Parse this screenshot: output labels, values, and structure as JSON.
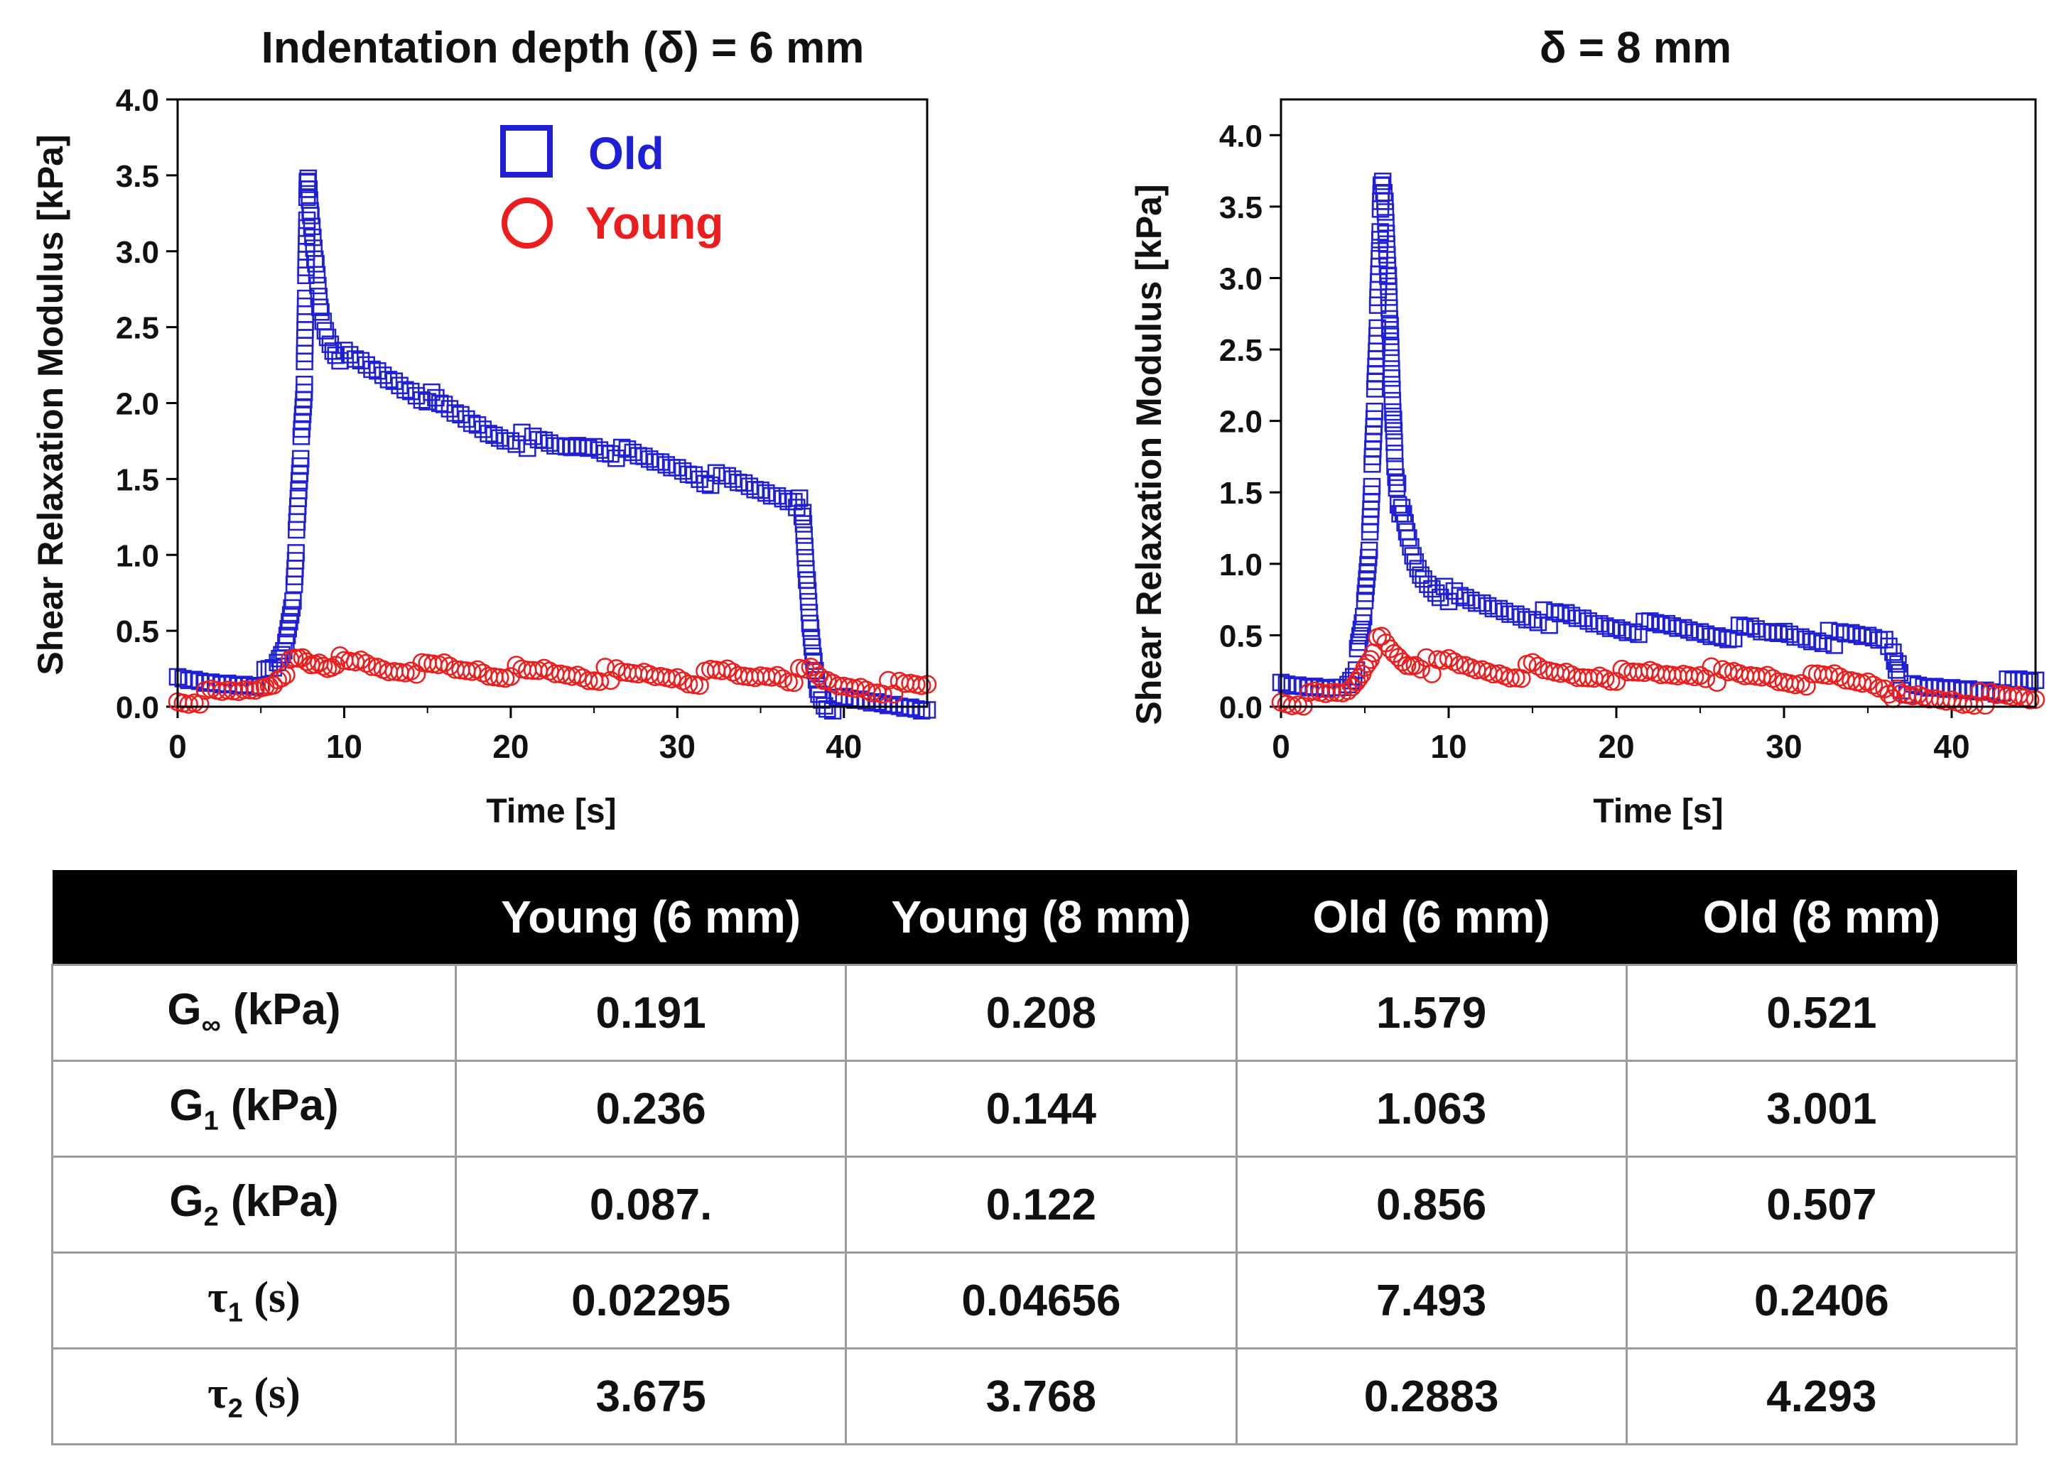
{
  "chart_data": [
    {
      "type": "scatter",
      "title": "Indentation depth (δ) = 6 mm",
      "xlabel": "Time [s]",
      "ylabel": "Shear Relaxation Modulus [kPa]",
      "xlim": [
        0,
        45
      ],
      "ylim": [
        0,
        4.0
      ],
      "x_ticks": [
        0,
        10,
        20,
        30,
        40
      ],
      "y_ticks": [
        0.0,
        0.5,
        1.0,
        1.5,
        2.0,
        2.5,
        3.0,
        3.5,
        4.0
      ],
      "x_tick_labels": [
        "0",
        "10",
        "20",
        "30",
        "40"
      ],
      "y_tick_labels": [
        "0.0",
        "0.5",
        "1.0",
        "1.5",
        "2.0",
        "2.5",
        "3.0",
        "3.5",
        "4.0"
      ],
      "legend": [
        {
          "name": "Old",
          "marker": "square",
          "color": "#1f1fd6"
        },
        {
          "name": "Young",
          "marker": "circle",
          "color": "#ee1c1c"
        }
      ],
      "series": [
        {
          "name": "Old",
          "x": [
            0,
            1,
            2,
            3,
            4,
            5,
            6,
            6.5,
            7,
            7.3,
            7.6,
            7.8,
            8,
            8.3,
            8.6,
            9,
            9.5,
            10,
            11,
            12,
            13,
            14,
            15,
            16,
            17,
            18,
            19,
            20,
            21,
            22,
            23,
            24,
            25,
            26,
            27,
            28,
            29,
            30,
            31,
            32,
            33,
            34,
            35,
            36,
            37,
            37.5,
            37.8,
            38,
            38.2,
            38.5,
            39,
            40,
            41,
            42,
            43,
            44,
            45
          ],
          "y": [
            0.15,
            0.15,
            0.15,
            0.16,
            0.17,
            0.18,
            0.25,
            0.4,
            0.8,
            1.5,
            2.1,
            3.5,
            3.2,
            2.9,
            2.6,
            2.45,
            2.35,
            2.3,
            2.25,
            2.2,
            2.15,
            2.1,
            2.05,
            1.95,
            1.9,
            1.85,
            1.8,
            1.78,
            1.75,
            1.72,
            1.7,
            1.72,
            1.73,
            1.7,
            1.65,
            1.62,
            1.6,
            1.58,
            1.55,
            1.5,
            1.48,
            1.45,
            1.42,
            1.4,
            1.38,
            1.3,
            0.8,
            0.5,
            0.3,
            0.1,
            0.02,
            0.02,
            0.02,
            0.02,
            0.02,
            0.02,
            0.02
          ]
        },
        {
          "name": "Young",
          "x": [
            0,
            1,
            2,
            3,
            4,
            5,
            6,
            6.5,
            7,
            7.5,
            8,
            8.5,
            9,
            9.5,
            10,
            11,
            12,
            13,
            14,
            15,
            16,
            17,
            18,
            19,
            20,
            21,
            22,
            23,
            24,
            25,
            26,
            27,
            28,
            29,
            30,
            31,
            32,
            33,
            34,
            35,
            36,
            37,
            38,
            39,
            40,
            41,
            42,
            43,
            44,
            45
          ],
          "y": [
            0.05,
            0.06,
            0.07,
            0.08,
            0.1,
            0.13,
            0.2,
            0.25,
            0.28,
            0.3,
            0.27,
            0.3,
            0.28,
            0.32,
            0.27,
            0.29,
            0.26,
            0.25,
            0.27,
            0.24,
            0.26,
            0.23,
            0.25,
            0.22,
            0.24,
            0.2,
            0.23,
            0.21,
            0.22,
            0.2,
            0.22,
            0.19,
            0.21,
            0.2,
            0.21,
            0.18,
            0.2,
            0.22,
            0.19,
            0.21,
            0.23,
            0.2,
            0.22,
            0.15,
            0.13,
            0.14,
            0.12,
            0.13,
            0.12,
            0.13
          ]
        }
      ]
    },
    {
      "type": "scatter",
      "title": "δ = 8 mm",
      "xlabel": "Time [s]",
      "ylabel": "Shear Relaxation Modulus [kPa]",
      "xlim": [
        0,
        45
      ],
      "ylim": [
        0,
        4.25
      ],
      "x_ticks": [
        0,
        10,
        20,
        30,
        40
      ],
      "y_ticks": [
        0.0,
        0.5,
        1.0,
        1.5,
        2.0,
        2.5,
        3.0,
        3.5,
        4.0
      ],
      "x_tick_labels": [
        "0",
        "10",
        "20",
        "30",
        "40"
      ],
      "y_tick_labels": [
        "0.0",
        "0.5",
        "1.0",
        "1.5",
        "2.0",
        "2.5",
        "3.0",
        "3.5",
        "4.0"
      ],
      "series": [
        {
          "name": "Old",
          "x": [
            0,
            1,
            2,
            3,
            4,
            4.5,
            5,
            5.3,
            5.5,
            5.7,
            5.9,
            6,
            6.2,
            6.4,
            6.6,
            6.8,
            7,
            7.3,
            7.6,
            8,
            8.5,
            9,
            10,
            11,
            12,
            13,
            14,
            15,
            16,
            17,
            18,
            19,
            20,
            21,
            22,
            23,
            24,
            25,
            26,
            27,
            28,
            29,
            30,
            31,
            32,
            33,
            34,
            35,
            36,
            36.5,
            37,
            38,
            39,
            40,
            41,
            42,
            43,
            44,
            45
          ],
          "y": [
            0.12,
            0.12,
            0.13,
            0.14,
            0.18,
            0.3,
            0.7,
            1.2,
            1.85,
            2.5,
            3.3,
            3.7,
            3.5,
            3.0,
            2.3,
            1.7,
            1.45,
            1.3,
            1.15,
            1.0,
            0.9,
            0.85,
            0.78,
            0.72,
            0.7,
            0.68,
            0.66,
            0.64,
            0.62,
            0.62,
            0.6,
            0.58,
            0.57,
            0.56,
            0.55,
            0.55,
            0.54,
            0.53,
            0.52,
            0.52,
            0.52,
            0.5,
            0.52,
            0.5,
            0.49,
            0.48,
            0.48,
            0.48,
            0.47,
            0.4,
            0.15,
            0.1,
            0.11,
            0.12,
            0.13,
            0.14,
            0.14,
            0.15,
            0.16
          ]
        },
        {
          "name": "Young",
          "x": [
            0,
            1,
            2,
            3,
            4,
            4.5,
            5,
            5.5,
            6,
            6.5,
            7,
            7.5,
            8,
            9,
            10,
            11,
            12,
            13,
            14,
            15,
            16,
            17,
            18,
            19,
            20,
            21,
            22,
            23,
            24,
            25,
            26,
            27,
            28,
            29,
            30,
            31,
            32,
            33,
            34,
            35,
            36,
            36.5,
            37,
            38,
            39,
            40,
            41,
            42,
            43,
            44,
            45
          ],
          "y": [
            0.05,
            0.05,
            0.06,
            0.07,
            0.1,
            0.18,
            0.3,
            0.42,
            0.45,
            0.38,
            0.34,
            0.3,
            0.32,
            0.28,
            0.3,
            0.27,
            0.26,
            0.25,
            0.24,
            0.26,
            0.22,
            0.23,
            0.21,
            0.24,
            0.22,
            0.2,
            0.23,
            0.22,
            0.24,
            0.25,
            0.22,
            0.21,
            0.2,
            0.22,
            0.19,
            0.2,
            0.18,
            0.2,
            0.17,
            0.18,
            0.15,
            0.1,
            0.05,
            0.06,
            0.05,
            0.06,
            0.05,
            0.06,
            0.05,
            0.06,
            0.05
          ]
        }
      ]
    }
  ],
  "table": {
    "headers": [
      "",
      "Young (6 mm)",
      "Young (8 mm)",
      "Old (6 mm)",
      "Old (8 mm)"
    ],
    "rows": [
      {
        "symbol": "G",
        "sub": "∞",
        "unit": " (kPa)",
        "values": [
          "0.191",
          "0.208",
          "1.579",
          "0.521"
        ]
      },
      {
        "symbol": "G",
        "sub": "1",
        "unit": " (kPa)",
        "values": [
          "0.236",
          "0.144",
          "1.063",
          "3.001"
        ]
      },
      {
        "symbol": "G",
        "sub": "2",
        "unit": " (kPa)",
        "values": [
          "0.087.",
          "0.122",
          "0.856",
          "0.507"
        ]
      },
      {
        "symbol": "τ",
        "sub": "1",
        "unit": " (s)",
        "values": [
          "0.02295",
          "0.04656",
          "7.493",
          "0.2406"
        ]
      },
      {
        "symbol": "τ",
        "sub": "2",
        "unit": " (s)",
        "values": [
          "3.675",
          "3.768",
          "0.2883",
          "4.293"
        ]
      }
    ]
  }
}
